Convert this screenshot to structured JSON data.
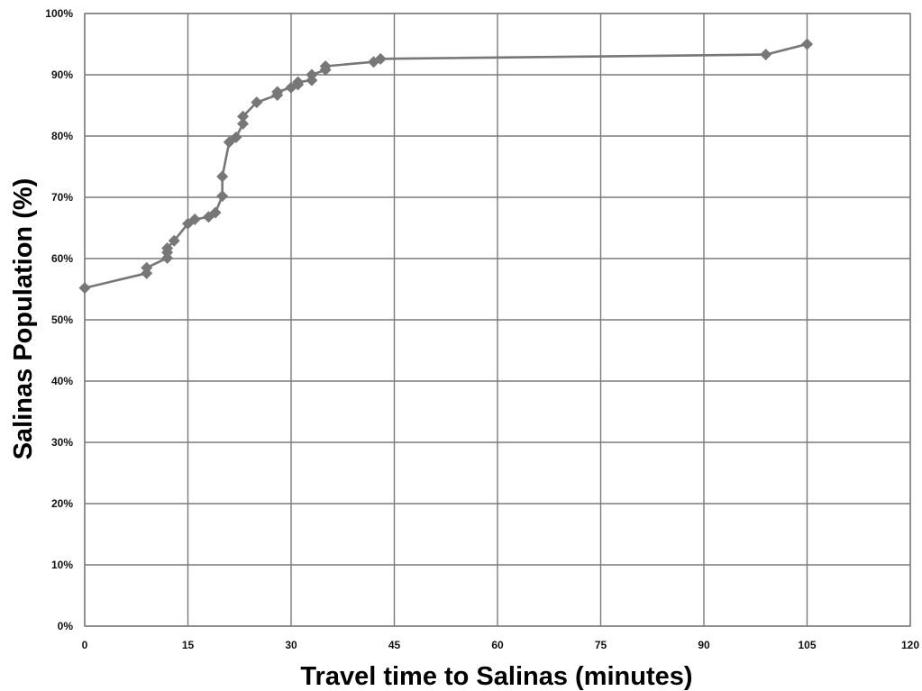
{
  "chart_data": {
    "type": "line",
    "title": "",
    "xlabel": "Travel time to Salinas (minutes)",
    "ylabel": "Salinas Population (%)",
    "xlim": [
      0,
      120
    ],
    "ylim": [
      0,
      100
    ],
    "x_ticks": [
      0,
      15,
      30,
      45,
      60,
      75,
      90,
      105,
      120
    ],
    "x_tick_labels": [
      "0",
      "15",
      "30",
      "45",
      "60",
      "75",
      "90",
      "105",
      "120"
    ],
    "y_ticks": [
      0,
      10,
      20,
      30,
      40,
      50,
      60,
      70,
      80,
      90,
      100
    ],
    "y_tick_labels": [
      "0%",
      "10%",
      "20%",
      "30%",
      "40%",
      "50%",
      "60%",
      "70%",
      "80%",
      "90%",
      "100%"
    ],
    "grid": true,
    "legend": "none",
    "marker": "diamond",
    "colors": {
      "series": "#777777",
      "grid": "#7a7a7a",
      "text": "#111111"
    },
    "series": [
      {
        "points": [
          [
            0,
            55.2
          ],
          [
            9,
            57.6
          ],
          [
            9,
            58.5
          ],
          [
            12,
            60.1
          ],
          [
            12,
            61.0
          ],
          [
            12,
            61.7
          ],
          [
            13,
            62.9
          ],
          [
            15,
            65.7
          ],
          [
            16,
            66.4
          ],
          [
            18,
            66.8
          ],
          [
            19,
            67.5
          ],
          [
            20,
            70.2
          ],
          [
            20,
            73.4
          ],
          [
            21,
            79.0
          ],
          [
            22,
            79.8
          ],
          [
            23,
            82.0
          ],
          [
            23,
            83.2
          ],
          [
            25,
            85.5
          ],
          [
            28,
            86.7
          ],
          [
            28,
            87.2
          ],
          [
            30,
            87.9
          ],
          [
            31,
            88.4
          ],
          [
            31,
            88.8
          ],
          [
            33,
            89.1
          ],
          [
            33,
            90.0
          ],
          [
            35,
            90.8
          ],
          [
            35,
            91.4
          ],
          [
            42,
            92.1
          ],
          [
            43,
            92.6
          ],
          [
            99,
            93.3
          ],
          [
            105,
            95.0
          ]
        ]
      }
    ]
  }
}
